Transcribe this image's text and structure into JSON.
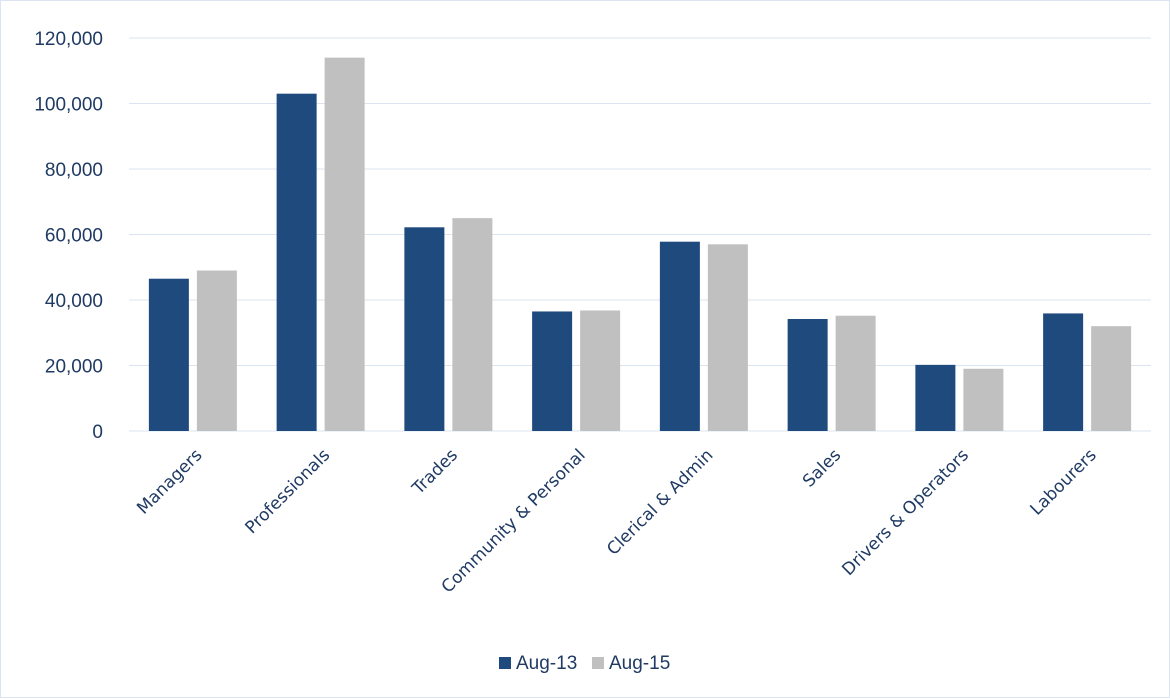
{
  "chart_data": {
    "type": "bar",
    "categories": [
      "Managers",
      "Professionals",
      "Trades",
      "Community & Personal",
      "Clerical & Admin",
      "Sales",
      "Drivers & Operators",
      "Labourers"
    ],
    "series": [
      {
        "name": "Aug-13",
        "color": "#1f4a7d",
        "values": [
          46500,
          103000,
          62200,
          36500,
          57800,
          34200,
          20200,
          35900
        ]
      },
      {
        "name": "Aug-15",
        "color": "#c0c0c0",
        "values": [
          49000,
          114000,
          65000,
          36800,
          57000,
          35200,
          19000,
          32000
        ]
      }
    ],
    "title": "",
    "xlabel": "",
    "ylabel": "",
    "ylim": [
      0,
      120000
    ],
    "yticks": [
      "0",
      "20,000",
      "40,000",
      "60,000",
      "80,000",
      "100,000",
      "120,000"
    ],
    "grid": true,
    "legend_position": "bottom",
    "colors": {
      "gridline": "#dbe5f1",
      "axis_text": "#1f3a63",
      "border": "#dbe5f1"
    }
  }
}
